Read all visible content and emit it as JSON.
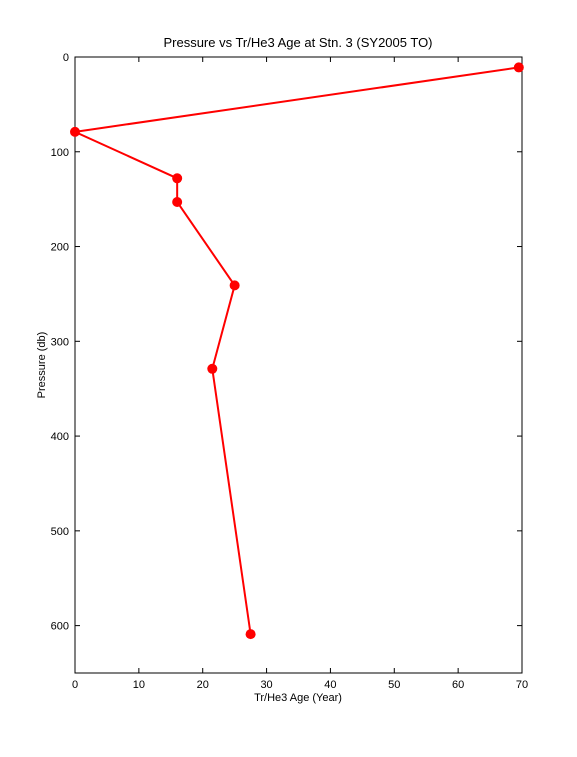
{
  "chart_data": {
    "type": "line",
    "title": "Pressure vs Tr/He3 Age at Stn. 3 (SY2005 TO)",
    "x_label": "Tr/He3 Age (Year)",
    "y_label": "Pressure (db)",
    "x": [
      69.5,
      0,
      16,
      16,
      25,
      21.5,
      27.5
    ],
    "series": [
      {
        "name": "Tr/He3 Age",
        "color": "#ff0000",
        "values": [
          11,
          79,
          128,
          153,
          241,
          329,
          609
        ]
      }
    ],
    "xlim": [
      0,
      70
    ],
    "xticks": [
      0,
      10,
      20,
      30,
      40,
      50,
      60,
      70
    ],
    "ylim": [
      0,
      650
    ],
    "yticks": [
      0,
      100,
      200,
      300,
      400,
      500,
      600
    ],
    "y_reversed": true,
    "grid": false
  }
}
